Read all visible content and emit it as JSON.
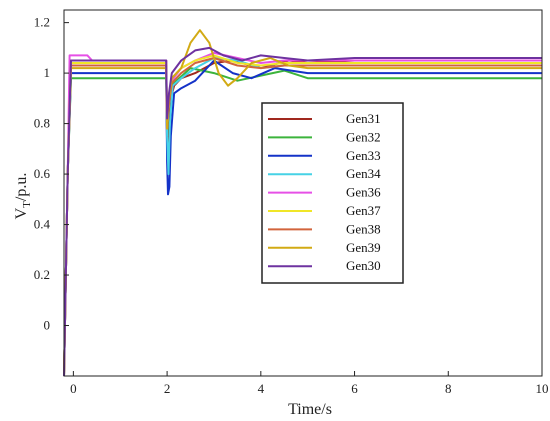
{
  "chart_data": {
    "type": "line",
    "title": "",
    "xlabel": "Time/s",
    "ylabel_main": "V",
    "ylabel_sub": "T",
    "ylabel_rest": "/p.u.",
    "xlim": [
      -0.2,
      10
    ],
    "ylim": [
      -0.2,
      1.25
    ],
    "x_ticks": [
      0,
      2,
      4,
      6,
      8,
      10
    ],
    "y_ticks": [
      0,
      0.2,
      0.4,
      0.6,
      0.8,
      1,
      1.2
    ],
    "legend_position": "center-right",
    "grid": false,
    "series": [
      {
        "name": "Gen31",
        "color": "#a0281e",
        "x": [
          -0.2,
          -0.12,
          -0.05,
          1.98,
          2.0,
          2.03,
          2.08,
          2.15,
          2.3,
          2.6,
          3.0,
          3.4,
          3.8,
          4.2,
          4.6,
          5.0,
          6.0,
          8.0,
          10.0
        ],
        "y": [
          -0.2,
          0.6,
          1.05,
          1.05,
          0.7,
          0.78,
          0.9,
          0.95,
          0.98,
          1.0,
          1.04,
          1.05,
          1.03,
          1.03,
          1.05,
          1.04,
          1.05,
          1.05,
          1.05
        ]
      },
      {
        "name": "Gen32",
        "color": "#3cb43c",
        "x": [
          -0.2,
          -0.12,
          -0.05,
          1.98,
          2.0,
          2.03,
          2.08,
          2.2,
          2.5,
          3.0,
          3.5,
          4.0,
          4.5,
          5.0,
          6.0,
          8.0,
          10.0
        ],
        "y": [
          -0.2,
          0.6,
          0.98,
          0.98,
          0.75,
          0.85,
          0.95,
          0.97,
          1.02,
          1.0,
          0.97,
          0.99,
          1.01,
          0.98,
          0.98,
          0.98,
          0.98
        ]
      },
      {
        "name": "Gen33",
        "color": "#1432c8",
        "x": [
          -0.2,
          -0.12,
          -0.05,
          0.4,
          1.98,
          2.0,
          2.02,
          2.05,
          2.08,
          2.15,
          2.3,
          2.6,
          3.0,
          3.4,
          3.8,
          4.3,
          5.0,
          6.0,
          8.0,
          10.0
        ],
        "y": [
          -0.2,
          0.6,
          1.0,
          1.0,
          1.0,
          0.65,
          0.52,
          0.55,
          0.75,
          0.92,
          0.94,
          0.97,
          1.05,
          1.0,
          0.98,
          1.02,
          1.0,
          1.0,
          1.0,
          1.0
        ]
      },
      {
        "name": "Gen34",
        "color": "#46d2e6",
        "x": [
          -0.2,
          -0.12,
          -0.05,
          1.98,
          2.0,
          2.03,
          2.06,
          2.12,
          2.3,
          2.6,
          3.0,
          3.5,
          4.0,
          4.5,
          5.0,
          6.0,
          8.0,
          10.0
        ],
        "y": [
          -0.2,
          0.6,
          1.03,
          1.03,
          0.75,
          0.6,
          0.8,
          0.95,
          0.98,
          1.02,
          1.06,
          1.05,
          1.02,
          1.03,
          1.03,
          1.03,
          1.03,
          1.03
        ]
      },
      {
        "name": "Gen36",
        "color": "#e650e6",
        "x": [
          -0.2,
          -0.12,
          -0.08,
          0.3,
          0.4,
          1.98,
          2.0,
          2.04,
          2.1,
          2.3,
          2.6,
          3.0,
          3.5,
          4.0,
          4.5,
          5.0,
          6.0,
          8.0,
          10.0
        ],
        "y": [
          -0.2,
          0.6,
          1.07,
          1.07,
          1.05,
          1.05,
          0.78,
          0.88,
          0.97,
          1.02,
          1.05,
          1.08,
          1.06,
          1.04,
          1.05,
          1.05,
          1.05,
          1.05,
          1.05
        ]
      },
      {
        "name": "Gen37",
        "color": "#f0e628",
        "x": [
          -0.2,
          -0.12,
          -0.05,
          1.98,
          2.0,
          2.04,
          2.1,
          2.3,
          2.6,
          3.0,
          3.5,
          4.0,
          4.5,
          5.0,
          6.0,
          8.0,
          10.0
        ],
        "y": [
          -0.2,
          0.6,
          1.04,
          1.04,
          0.82,
          0.9,
          0.98,
          1.02,
          1.05,
          1.07,
          1.04,
          1.03,
          1.04,
          1.04,
          1.04,
          1.04,
          1.04
        ]
      },
      {
        "name": "Gen38",
        "color": "#d2643c",
        "x": [
          -0.2,
          -0.12,
          -0.05,
          1.98,
          2.0,
          2.04,
          2.1,
          2.3,
          2.6,
          3.0,
          3.5,
          4.0,
          4.5,
          5.0,
          6.0,
          8.0,
          10.0
        ],
        "y": [
          -0.2,
          0.6,
          1.03,
          1.03,
          0.8,
          0.88,
          0.96,
          1.0,
          1.04,
          1.06,
          1.03,
          1.02,
          1.03,
          1.03,
          1.03,
          1.03,
          1.03
        ]
      },
      {
        "name": "Gen39",
        "color": "#d2aa14",
        "x": [
          -0.2,
          -0.12,
          -0.05,
          1.98,
          2.0,
          2.04,
          2.1,
          2.3,
          2.5,
          2.7,
          2.9,
          3.1,
          3.3,
          3.5,
          3.8,
          4.2,
          4.6,
          5.0,
          6.0,
          8.0,
          10.0
        ],
        "y": [
          -0.2,
          0.6,
          1.02,
          1.02,
          0.78,
          0.9,
          0.98,
          1.02,
          1.12,
          1.17,
          1.12,
          1.0,
          0.95,
          0.98,
          1.04,
          1.06,
          1.03,
          1.02,
          1.02,
          1.02,
          1.02
        ]
      },
      {
        "name": "Gen30",
        "color": "#6e32a0",
        "x": [
          -0.2,
          -0.12,
          -0.05,
          1.98,
          2.0,
          2.04,
          2.1,
          2.3,
          2.6,
          2.9,
          3.2,
          3.6,
          4.0,
          4.5,
          5.0,
          6.0,
          8.0,
          10.0
        ],
        "y": [
          -0.2,
          0.6,
          1.05,
          1.05,
          0.82,
          0.92,
          1.0,
          1.05,
          1.09,
          1.1,
          1.07,
          1.05,
          1.07,
          1.06,
          1.05,
          1.06,
          1.06,
          1.06
        ]
      }
    ]
  }
}
